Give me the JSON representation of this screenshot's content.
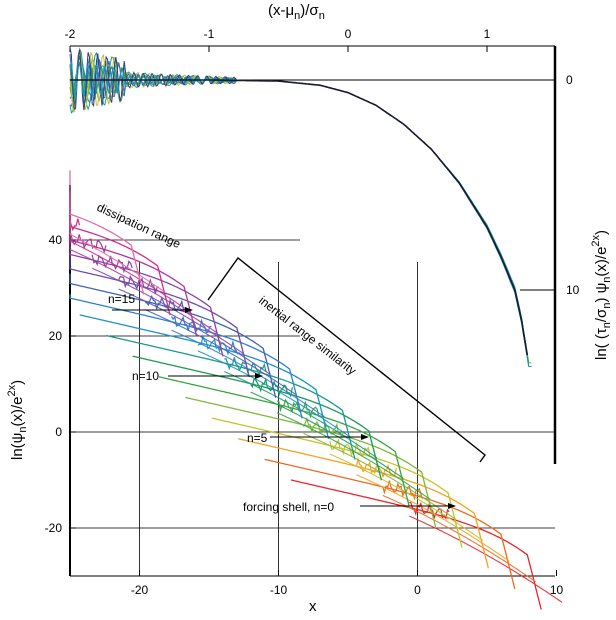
{
  "chart_data": [
    {
      "type": "line",
      "title": "",
      "xlabel": "(x-μn)/σn",
      "ylabel": "ln( (τn/σn) ψn(x)/e2x)",
      "x_ticks": [
        "-2",
        "-1",
        "0",
        "1"
      ],
      "x_tick_values": [
        -2,
        -1,
        0,
        1
      ],
      "y_ticks": [
        "0",
        "10"
      ],
      "y_tick_values": [
        0,
        10
      ],
      "xlim": [
        -2,
        1.55
      ],
      "ylim": [
        0,
        16.5
      ],
      "y_inverted": true,
      "description_of_series": "collapsed curves for many shells, flat near 0 then dropping steeply past x≈0",
      "collapse_curve": {
        "x": [
          -2.0,
          -1.5,
          -1.0,
          -0.5,
          -0.2,
          0.0,
          0.2,
          0.4,
          0.6,
          0.8,
          1.0,
          1.1,
          1.2,
          1.25,
          1.3
        ],
        "y": [
          0.0,
          0.0,
          0.0,
          0.05,
          0.25,
          0.6,
          1.2,
          2.1,
          3.3,
          4.9,
          7.0,
          8.4,
          10.0,
          11.5,
          13.5
        ]
      }
    },
    {
      "type": "line",
      "xlabel": "x",
      "ylabel": "ln(ψn(x)/e2x)",
      "x_ticks": [
        "-20",
        "-10",
        "0",
        "10"
      ],
      "x_tick_values": [
        -20,
        -10,
        0,
        10
      ],
      "y_ticks": [
        "40",
        "20",
        "0",
        "-20"
      ],
      "y_tick_values": [
        40,
        20,
        0,
        -20
      ],
      "xlim": [
        -25,
        10
      ],
      "ylim": [
        -30,
        52
      ],
      "shells": [
        0,
        15
      ],
      "annotations": [
        {
          "text": "dissipation range",
          "x": -20.5,
          "y": 45
        },
        {
          "text": "inertial range similarity",
          "x": -5,
          "y": 24
        },
        {
          "text": "n=15",
          "x": -23.5,
          "y": 25
        },
        {
          "text": "n=10",
          "x": -20,
          "y": 15
        },
        {
          "text": "n=5",
          "x": -6,
          "y": -1
        },
        {
          "text": "forcing shell,  n=0",
          "x": -5.5,
          "y": -15
        }
      ]
    }
  ],
  "labels": {
    "top_xlabel_main": "(x-μ",
    "top_xlabel_sub1": "n",
    "top_xlabel_mid": ")/σ",
    "top_xlabel_sub2": "n",
    "right_ylabel_a": "ln( (τ",
    "right_ylabel_sub1": "n",
    "right_ylabel_b": "/σ",
    "right_ylabel_sub2": "n",
    "right_ylabel_c": ") ψ",
    "right_ylabel_sub3": "n",
    "right_ylabel_d": "(x)/e",
    "right_ylabel_sup": "2x",
    "right_ylabel_e": ")",
    "left_ylabel_a": "ln(ψ",
    "left_ylabel_sub": "n",
    "left_ylabel_b": "(x)/e",
    "left_ylabel_sup": "2x",
    "left_ylabel_c": ")",
    "bottom_xlabel": "x",
    "ann_dissipation": "dissipation range",
    "ann_inertial": "inertial range similarity",
    "ann_n15": "n=15",
    "ann_n10": "n=10",
    "ann_n5": "n=5",
    "ann_forcing": "forcing shell,  n=0"
  },
  "colors": {
    "shell_palette": [
      "#e8242c",
      "#ee6a1e",
      "#f4a21f",
      "#c7c12a",
      "#7fb83a",
      "#38a63f",
      "#1b9a50",
      "#1a9b8a",
      "#1b93c7",
      "#2f7fd0",
      "#3e63b8",
      "#6a4fb0",
      "#8b44a6",
      "#b0369c",
      "#cf2c8f",
      "#e46da8"
    ]
  }
}
